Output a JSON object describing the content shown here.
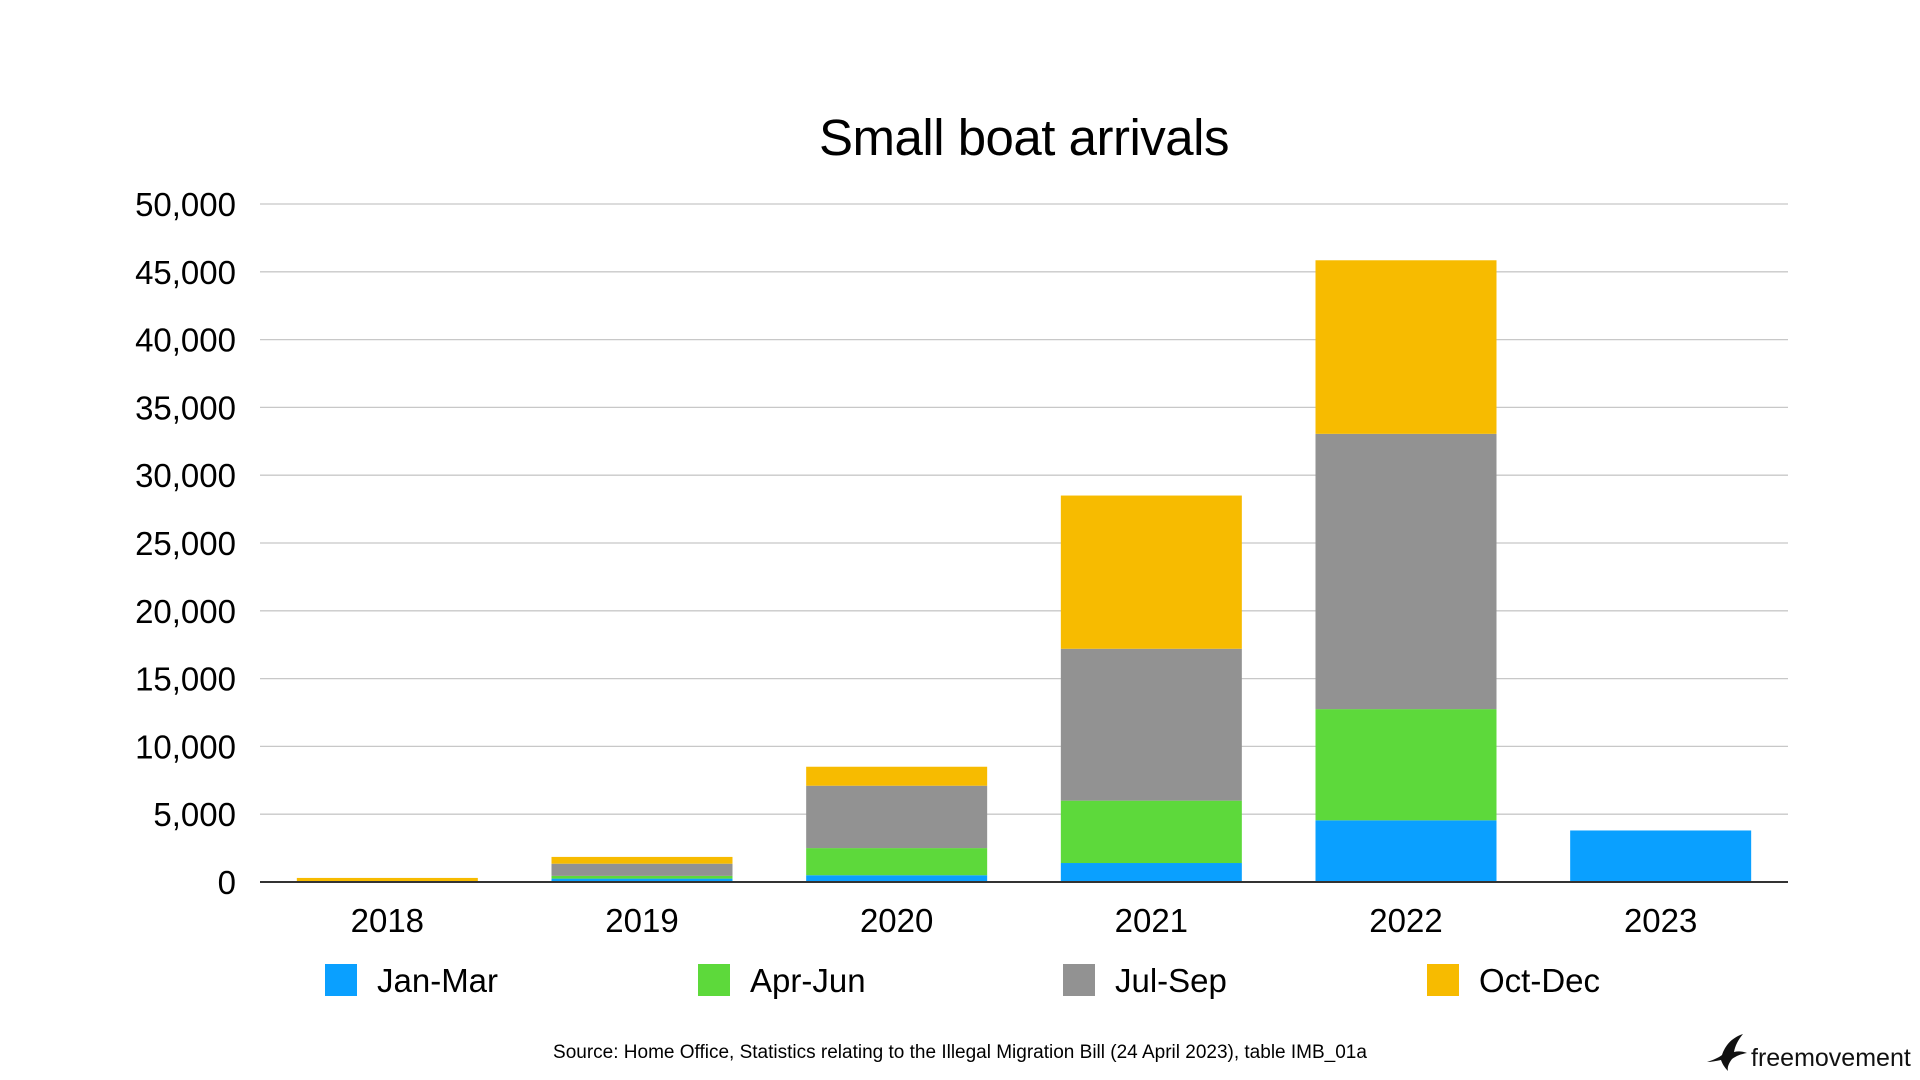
{
  "chart_data": {
    "type": "bar",
    "stacked": true,
    "title": "Small boat arrivals",
    "xlabel": "",
    "ylabel": "",
    "categories": [
      "2018",
      "2019",
      "2020",
      "2021",
      "2022",
      "2023"
    ],
    "series": [
      {
        "name": "Jan-Mar",
        "color": "#0aa0ff",
        "values": [
          0,
          250,
          500,
          1400,
          4550,
          3800
        ]
      },
      {
        "name": "Apr-Jun",
        "color": "#5dd93b",
        "values": [
          0,
          200,
          2000,
          4600,
          8200,
          0
        ]
      },
      {
        "name": "Jul-Sep",
        "color": "#929292",
        "values": [
          0,
          900,
          4600,
          11200,
          20300,
          0
        ]
      },
      {
        "name": "Oct-Dec",
        "color": "#f7bb00",
        "values": [
          300,
          500,
          1400,
          11300,
          12800,
          0
        ]
      }
    ],
    "ylim": [
      0,
      50000
    ],
    "yticks": [
      0,
      5000,
      10000,
      15000,
      20000,
      25000,
      30000,
      35000,
      40000,
      45000,
      50000
    ],
    "ytick_labels": [
      "0",
      "5,000",
      "10,000",
      "15,000",
      "20,000",
      "25,000",
      "30,000",
      "35,000",
      "40,000",
      "45,000",
      "50,000"
    ],
    "grid": true,
    "legend_position": "bottom"
  },
  "source_note": "Source: Home Office, Statistics relating to the Illegal Migration Bill (24 April 2023), table IMB_01a",
  "brand": {
    "name": "freemovement",
    "icon": "bird-icon"
  }
}
